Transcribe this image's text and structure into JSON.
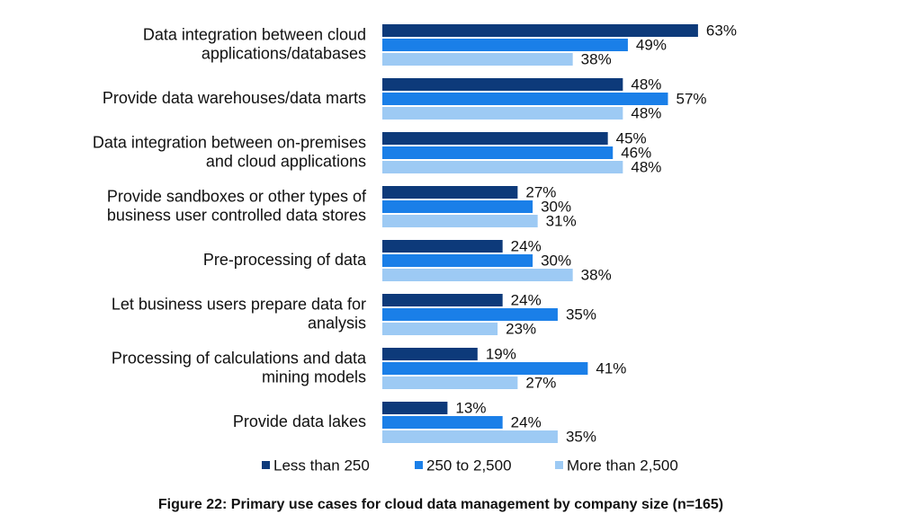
{
  "chart_data": {
    "type": "bar",
    "orientation": "horizontal",
    "categories": [
      [
        "Data integration between cloud",
        "applications/databases"
      ],
      [
        "Provide data warehouses/data marts"
      ],
      [
        "Data integration between on-premises",
        "and cloud applications"
      ],
      [
        "Provide sandboxes or other types of",
        "business user controlled data stores"
      ],
      [
        "Pre-processing of data"
      ],
      [
        "Let business users prepare data for",
        "analysis"
      ],
      [
        "Processing of calculations and data",
        "mining models"
      ],
      [
        "Provide data lakes"
      ]
    ],
    "series": [
      {
        "name": "Less than 250",
        "color": "#0d3a7a",
        "values": [
          63,
          48,
          45,
          27,
          24,
          24,
          19,
          13
        ]
      },
      {
        "name": "250 to 2,500",
        "color": "#1a7fe8",
        "values": [
          49,
          57,
          46,
          30,
          30,
          35,
          41,
          24
        ]
      },
      {
        "name": "More than 2,500",
        "color": "#9dcaf4",
        "values": [
          38,
          48,
          48,
          31,
          38,
          23,
          27,
          35
        ]
      }
    ],
    "value_suffix": "%",
    "xlim": [
      0,
      70
    ],
    "grid": false,
    "legend_position": "bottom",
    "caption": "Figure 22: Primary use cases for cloud data management by company size (n=165)"
  }
}
